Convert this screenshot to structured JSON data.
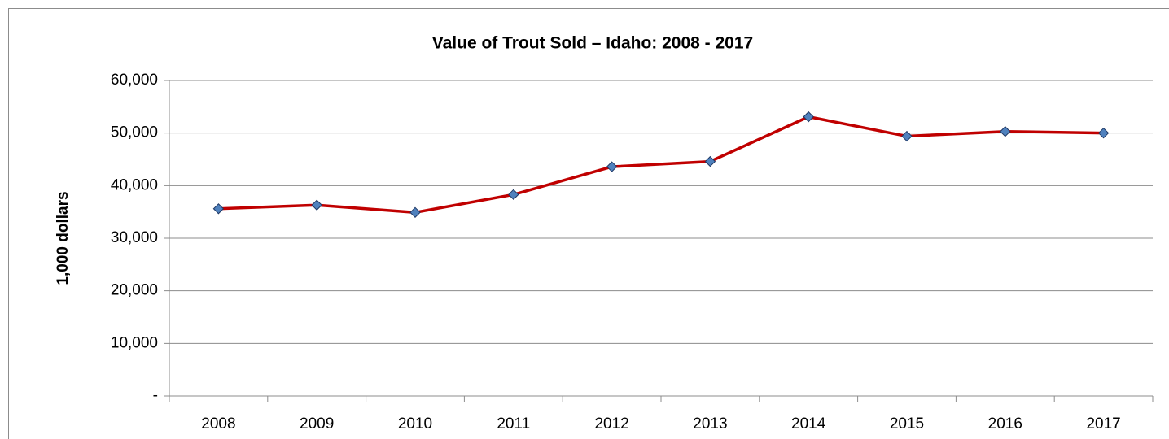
{
  "chart_data": {
    "type": "line",
    "title": "Value of Trout Sold – Idaho: 2008 - 2017",
    "y_label": "1,000 dollars",
    "categories": [
      "2008",
      "2009",
      "2010",
      "2011",
      "2012",
      "2013",
      "2014",
      "2015",
      "2016",
      "2017"
    ],
    "values": [
      35600,
      36300,
      34900,
      38300,
      43600,
      44600,
      53100,
      49400,
      50300,
      50000
    ],
    "color": "#c00000",
    "marker_color": "#4f81bd",
    "ylim": [
      0,
      60000
    ],
    "yticks": [
      {
        "value": 0,
        "label": "-"
      },
      {
        "value": 10000,
        "label": "10,000"
      },
      {
        "value": 20000,
        "label": "20,000"
      },
      {
        "value": 30000,
        "label": "30,000"
      },
      {
        "value": 40000,
        "label": "40,000"
      },
      {
        "value": 50000,
        "label": "50,000"
      },
      {
        "value": 60000,
        "label": "60,000"
      }
    ],
    "grid": true
  }
}
